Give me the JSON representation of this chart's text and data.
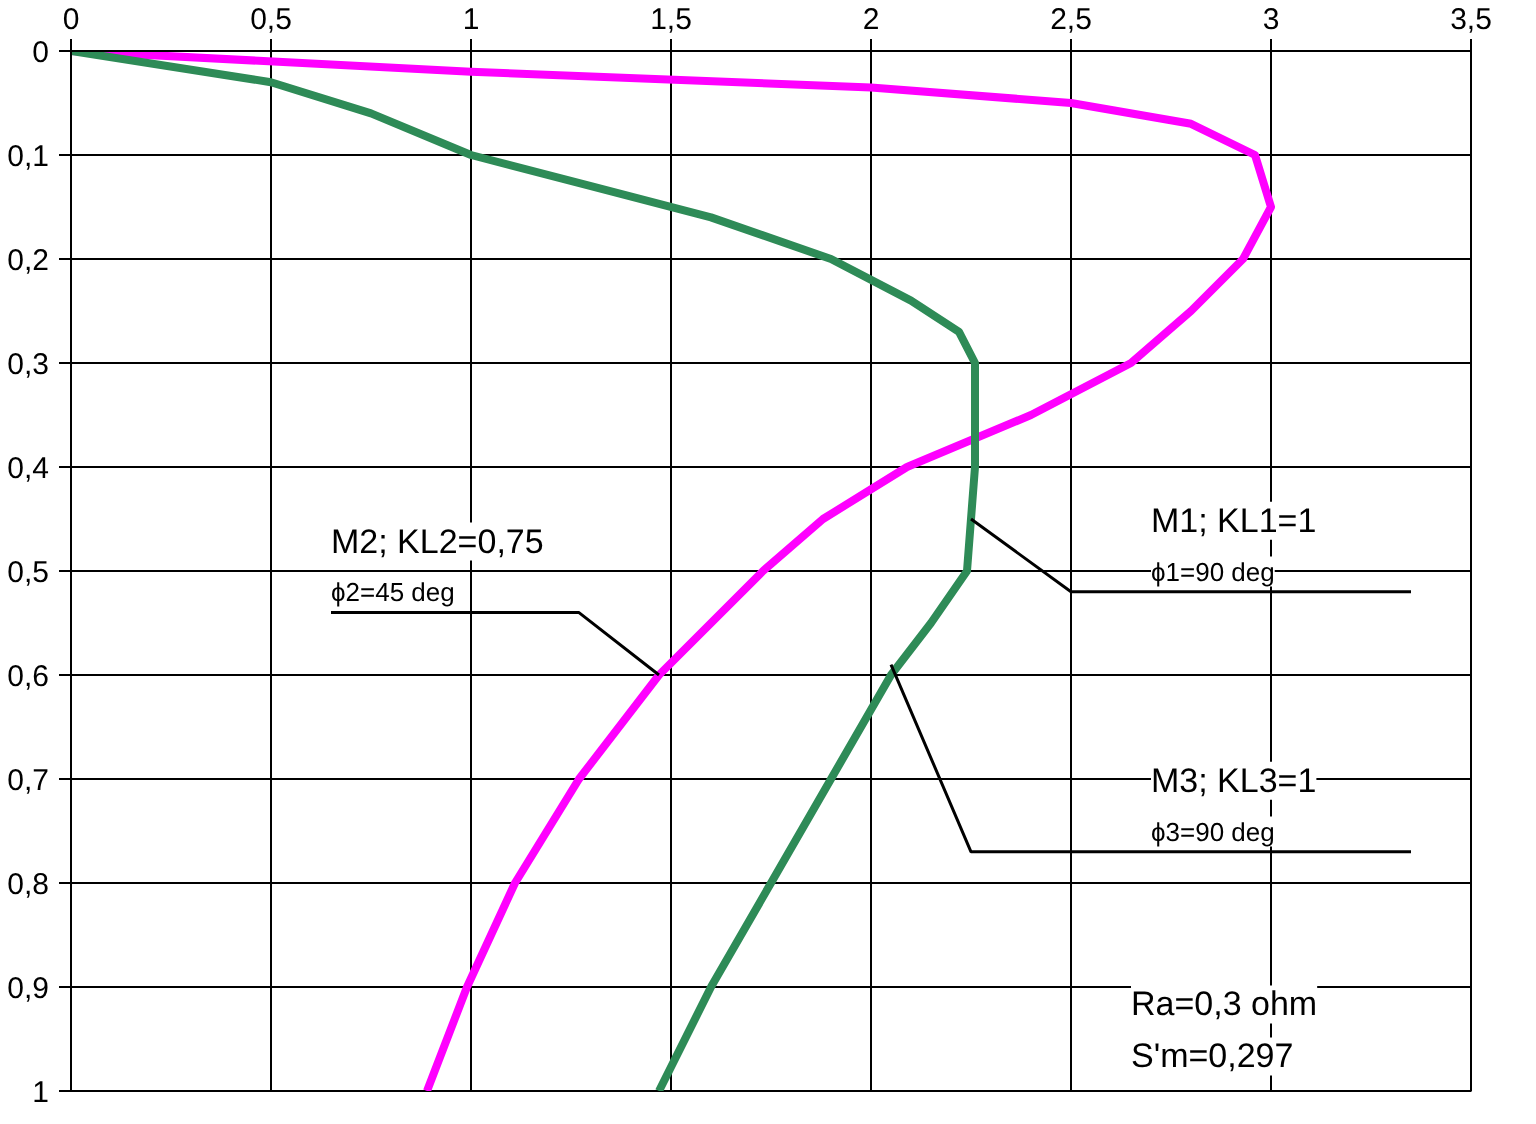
{
  "chart_data": {
    "type": "line",
    "grid": true,
    "line_style": "solid",
    "marker": "none",
    "xlim": [
      0,
      3.5
    ],
    "ylim": [
      1,
      0
    ],
    "xticks": [
      0,
      {
        "value": 0.5,
        "label": "0,5"
      },
      1,
      {
        "value": 1.5,
        "label": "1,5"
      },
      2,
      {
        "value": 2.5,
        "label": "2,5"
      },
      3,
      {
        "value": 3.5,
        "label": "3,5"
      }
    ],
    "yticks": [
      0,
      {
        "value": 0.1,
        "label": "0,1"
      },
      {
        "value": 0.2,
        "label": "0,2"
      },
      {
        "value": 0.3,
        "label": "0,3"
      },
      {
        "value": 0.4,
        "label": "0,4"
      },
      {
        "value": 0.5,
        "label": "0,5"
      },
      {
        "value": 0.6,
        "label": "0,6"
      },
      {
        "value": 0.7,
        "label": "0,7"
      },
      {
        "value": 0.8,
        "label": "0,8"
      },
      {
        "value": 0.9,
        "label": "0,9"
      },
      1
    ],
    "series": [
      {
        "color": "#ff00ff",
        "x": [
          0,
          1,
          2,
          2.5,
          2.8,
          2.96,
          3.0,
          2.93,
          2.8,
          2.65,
          2.4,
          2.09,
          1.88,
          1.73,
          1.47,
          1.27,
          1.11,
          0.99,
          0.89
        ],
        "values": [
          0,
          0.02,
          0.035,
          0.05,
          0.07,
          0.1,
          0.15,
          0.2,
          0.25,
          0.3,
          0.35,
          0.4,
          0.45,
          0.5,
          0.6,
          0.7,
          0.8,
          0.9,
          1
        ]
      },
      {
        "color": "#2e8b57",
        "x": [
          0,
          0.5,
          0.75,
          1,
          1.3,
          1.6,
          1.9,
          2.1,
          2.22,
          2.26,
          2.26,
          2.24,
          2.15,
          2.05,
          1.9,
          1.75,
          1.6,
          1.47
        ],
        "values": [
          0,
          0.03,
          0.06,
          0.1,
          0.13,
          0.16,
          0.2,
          0.24,
          0.27,
          0.3,
          0.4,
          0.5,
          0.55,
          0.6,
          0.7,
          0.8,
          0.9,
          1
        ]
      }
    ],
    "annotations": [
      {
        "text": "M2; KL2=0,75\nϕ2=45 deg",
        "x": 1.47,
        "y": 0.6
      },
      {
        "text": "M1;  KL1=1\nϕ1=90 deg",
        "x": 2.25,
        "y": 0.45
      },
      {
        "text": "M3; KL3=1\nϕ3=90 deg",
        "x": 2.05,
        "y": 0.59
      },
      "Ra=0,3 ohm\nS'm=0,297"
    ]
  }
}
